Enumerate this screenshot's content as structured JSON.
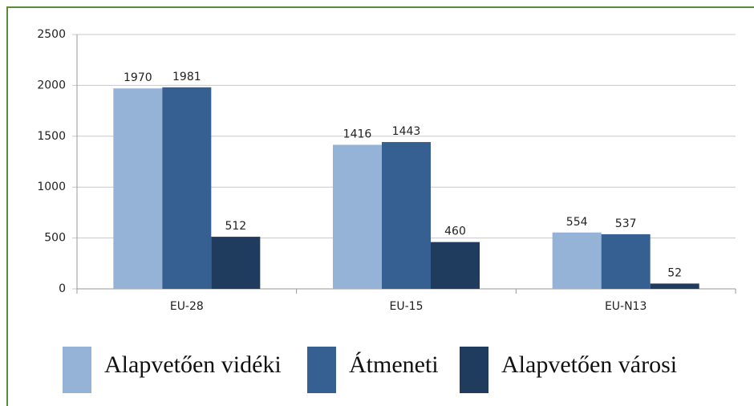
{
  "chart_data": {
    "type": "bar",
    "categories": [
      "EU-28",
      "EU-15",
      "EU-N13"
    ],
    "series": [
      {
        "name": "Alapvetően vidéki",
        "color": "#95b3d7",
        "values": [
          1970,
          1416,
          554
        ]
      },
      {
        "name": "Átmeneti",
        "color": "#376092",
        "values": [
          1981,
          1443,
          537
        ]
      },
      {
        "name": "Alapvetően városi",
        "color": "#1f3c5f",
        "values": [
          512,
          460,
          52
        ]
      }
    ],
    "ylim": [
      0,
      2500
    ],
    "yticks": [
      0,
      500,
      1000,
      1500,
      2000,
      2500
    ],
    "grid": true,
    "legend": "bottom"
  }
}
